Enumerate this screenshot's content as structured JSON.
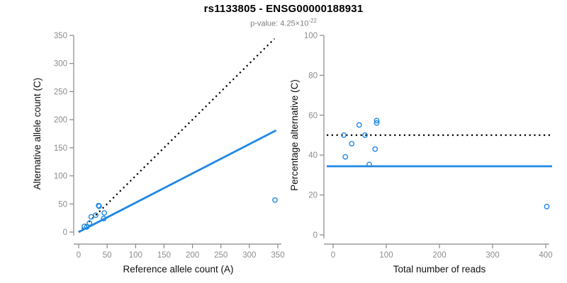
{
  "header": {
    "title": "rs1133805 - ENSG00000188931",
    "subtitle_prefix": "p-value: 4.25×10",
    "subtitle_exponent": "-22"
  },
  "colors": {
    "accent_blue": "#1E88E5",
    "reference_black": "#000000",
    "axis_gray": "#888888",
    "tick_label_gray": "#8C8C8C",
    "axis_title_black": "#111111",
    "subtitle_gray": "#7F7F7F"
  },
  "chart_data": [
    {
      "type": "scatter",
      "name": "allele-counts-scatter",
      "title": "",
      "xlabel": "Reference allele count (A)",
      "ylabel": "Alternative allele count (C)",
      "xlim": [
        0,
        350
      ],
      "ylim": [
        0,
        350
      ],
      "xticks": [
        0,
        50,
        100,
        150,
        200,
        250,
        300,
        350
      ],
      "yticks": [
        0,
        50,
        100,
        150,
        200,
        250,
        300,
        350
      ],
      "grid": false,
      "legend": "none",
      "points": [
        [
          10,
          10
        ],
        [
          14,
          9
        ],
        [
          19,
          16
        ],
        [
          22,
          27
        ],
        [
          30,
          30
        ],
        [
          35,
          47
        ],
        [
          36,
          46
        ],
        [
          44,
          24
        ],
        [
          45,
          34
        ],
        [
          345,
          57
        ]
      ],
      "lines": [
        {
          "name": "identity-line",
          "style": "dotted",
          "color": "#000000",
          "from": [
            0,
            0
          ],
          "to": [
            344,
            344
          ]
        },
        {
          "name": "fit-line",
          "style": "solid",
          "color": "#1E88E5",
          "from": [
            0,
            0
          ],
          "to": [
            347,
            181
          ]
        }
      ]
    },
    {
      "type": "scatter",
      "name": "percentage-scatter",
      "title": "",
      "xlabel": "Total number of reads",
      "ylabel": "Percentage alternative (C)",
      "xlim": [
        0,
        400
      ],
      "ylim": [
        0,
        100
      ],
      "xticks": [
        0,
        100,
        200,
        300,
        400
      ],
      "yticks": [
        0,
        20,
        40,
        60,
        80,
        100
      ],
      "grid": false,
      "legend": "none",
      "points": [
        [
          20,
          50
        ],
        [
          23,
          39.1
        ],
        [
          35,
          45.7
        ],
        [
          49,
          55.1
        ],
        [
          60,
          50
        ],
        [
          68,
          35.3
        ],
        [
          79,
          43
        ],
        [
          82,
          57.3
        ],
        [
          82,
          56.1
        ],
        [
          402,
          14.2
        ]
      ],
      "lines": [
        {
          "name": "fifty-percent-line",
          "style": "dotted",
          "color": "#000000",
          "hline": 50
        },
        {
          "name": "mean-percentage-line",
          "style": "solid",
          "color": "#1E88E5",
          "hline": 34.4
        }
      ]
    }
  ]
}
